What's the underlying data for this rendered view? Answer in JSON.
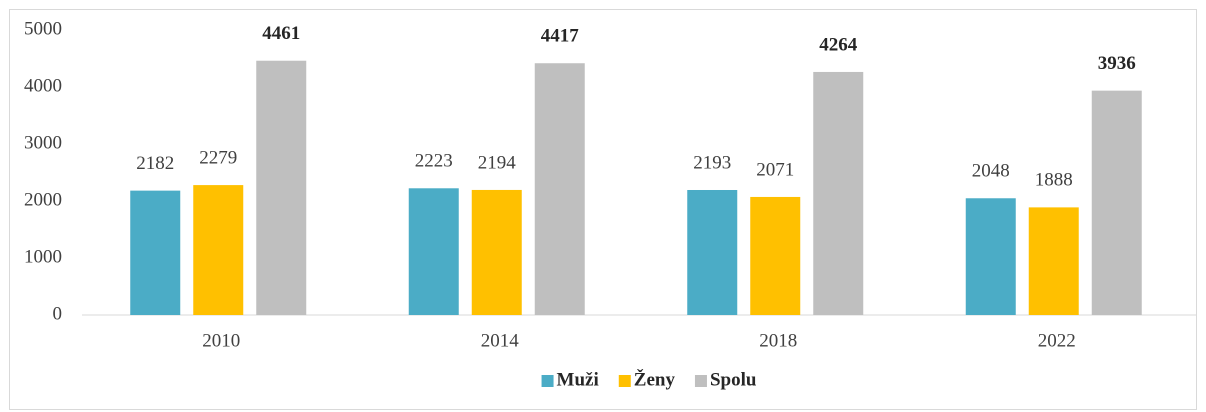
{
  "chart_data": {
    "type": "bar",
    "categories": [
      "2010",
      "2014",
      "2018",
      "2022"
    ],
    "series": [
      {
        "name": "Muži",
        "color": "#4bacc6",
        "values": [
          2182,
          2223,
          2193,
          2048
        ]
      },
      {
        "name": "Ženy",
        "color": "#ffc000",
        "values": [
          2279,
          2194,
          2071,
          1888
        ]
      },
      {
        "name": "Spolu",
        "color": "#bfbfbf",
        "values": [
          4461,
          4417,
          4264,
          3936
        ]
      }
    ],
    "ylim": [
      0,
      5000
    ],
    "yticks": [
      0,
      1000,
      2000,
      3000,
      4000,
      5000
    ],
    "grid": false,
    "legend": "bottom"
  }
}
